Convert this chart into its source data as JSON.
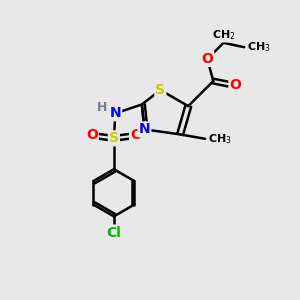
{
  "background_color": "#e8e8e8",
  "atom_colors": {
    "C": "#000000",
    "H": "#708090",
    "N": "#0000ff",
    "O": "#ff0000",
    "S_thiazole": "#cccc00",
    "S_sulfonyl": "#cccc00",
    "Cl": "#00bb00"
  },
  "bond_color": "#000000",
  "bond_width": 1.8,
  "font_size": 10,
  "figsize": [
    3.0,
    3.0
  ],
  "dpi": 100
}
